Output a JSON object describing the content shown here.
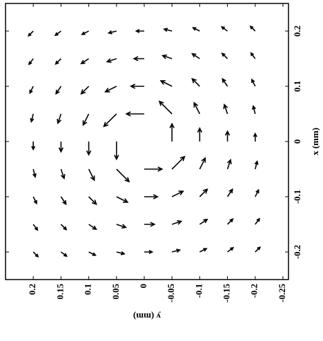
{
  "chart_data": {
    "type": "quiver",
    "xlabel": "x (mm)",
    "ylabel": "y (mm)",
    "xlim": [
      -0.25,
      0.25
    ],
    "ylim": [
      -0.26,
      0.25
    ],
    "xticks": [
      -0.2,
      -0.1,
      0,
      0.1,
      0.2
    ],
    "yticks": [
      0.2,
      0.15,
      0.1,
      0.05,
      0,
      -0.05,
      -0.1,
      -0.15,
      -0.2,
      -0.25
    ],
    "color": "#000000",
    "x": [
      -0.2,
      -0.15,
      -0.1,
      -0.05,
      0,
      0.05,
      0.1,
      0.15,
      0.2
    ],
    "y": [
      -0.2,
      -0.15,
      -0.1,
      -0.05,
      0,
      0.05,
      0.1,
      0.15,
      0.2
    ],
    "u": [
      [
        0.0108,
        0.0128,
        0.0152,
        0.0176,
        0.018,
        0.0176,
        0.0152,
        0.0128,
        0.0108
      ],
      [
        0.0096,
        0.012,
        0.0168,
        0.021,
        0.0231,
        0.021,
        0.0168,
        0.012,
        0.0096
      ],
      [
        0.0076,
        0.0112,
        0.017,
        0.025,
        0.03,
        0.025,
        0.017,
        0.0112,
        0.0076
      ],
      [
        0.0044,
        0.007,
        0.0125,
        0.0283,
        0.04,
        0.0283,
        0.0125,
        0.007,
        0.0044
      ],
      [
        0,
        0,
        0,
        0,
        0,
        0,
        0,
        0,
        0
      ],
      [
        -0.0044,
        -0.007,
        -0.0125,
        -0.0283,
        -0.04,
        -0.0283,
        -0.0125,
        -0.007,
        -0.0044
      ],
      [
        -0.0076,
        -0.0112,
        -0.017,
        -0.025,
        -0.03,
        -0.025,
        -0.017,
        -0.0112,
        -0.0076
      ],
      [
        -0.0096,
        -0.012,
        -0.0168,
        -0.021,
        -0.0231,
        -0.021,
        -0.0168,
        -0.012,
        -0.0096
      ],
      [
        -0.0108,
        -0.0128,
        -0.0152,
        -0.0176,
        -0.018,
        -0.0176,
        -0.0152,
        -0.0128,
        -0.0108
      ]
    ],
    "v": [
      [
        -0.0108,
        -0.0096,
        -0.0076,
        -0.0044,
        0,
        0.0044,
        0.0076,
        0.0096,
        0.0108
      ],
      [
        -0.0128,
        -0.012,
        -0.0112,
        -0.007,
        0,
        0.007,
        0.0112,
        0.012,
        0.0128
      ],
      [
        -0.0152,
        -0.0168,
        -0.017,
        -0.0125,
        0,
        0.0125,
        0.017,
        0.0168,
        0.0152
      ],
      [
        -0.0176,
        -0.021,
        -0.025,
        -0.0283,
        0,
        0.0283,
        0.025,
        0.021,
        0.0176
      ],
      [
        -0.018,
        -0.0231,
        -0.03,
        -0.04,
        0,
        0.04,
        0.03,
        0.0231,
        0.018
      ],
      [
        -0.0176,
        -0.021,
        -0.025,
        -0.0283,
        0,
        0.0283,
        0.025,
        0.021,
        0.0176
      ],
      [
        -0.0152,
        -0.0168,
        -0.017,
        -0.0125,
        0,
        0.0125,
        0.017,
        0.0168,
        0.0152
      ],
      [
        -0.0128,
        -0.012,
        -0.0112,
        -0.007,
        0,
        0.007,
        0.0112,
        0.012,
        0.0128
      ],
      [
        -0.0108,
        -0.0096,
        -0.0076,
        -0.0044,
        0,
        0.0044,
        0.0076,
        0.0096,
        0.0108
      ]
    ]
  }
}
